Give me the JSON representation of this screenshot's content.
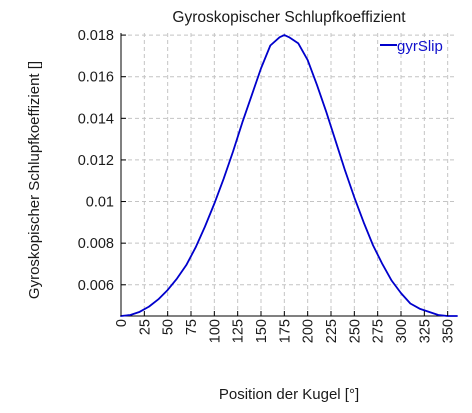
{
  "chart_data": {
    "type": "line",
    "title": "Gyroskopischer Schlupfkoeffizient",
    "xlabel": "Position der Kugel [°]",
    "ylabel": "Gyroskopischer Schlupfkoeffizient []",
    "xlim": [
      0,
      360
    ],
    "ylim": [
      0.0045,
      0.0181
    ],
    "xticks": [
      0,
      25,
      50,
      75,
      100,
      125,
      150,
      175,
      200,
      225,
      250,
      275,
      300,
      325,
      350
    ],
    "yticks": [
      0.006,
      0.008,
      0.01,
      0.012,
      0.014,
      0.016,
      0.018
    ],
    "ytick_labels": [
      "0.006",
      "0.008",
      "0.01",
      "0.012",
      "0.014",
      "0.016",
      "0.018"
    ],
    "grid": true,
    "legend_position": "top-right",
    "series": [
      {
        "name": "gyrSlip",
        "color": "#0000cc",
        "x": [
          0,
          10,
          20,
          30,
          40,
          50,
          60,
          70,
          80,
          90,
          100,
          110,
          120,
          130,
          140,
          150,
          160,
          170,
          175,
          180,
          190,
          200,
          210,
          220,
          230,
          240,
          250,
          260,
          270,
          280,
          290,
          300,
          310,
          320,
          330,
          340,
          350,
          360
        ],
        "y": [
          0.0045,
          0.00455,
          0.0047,
          0.00495,
          0.0053,
          0.00575,
          0.0063,
          0.00695,
          0.0078,
          0.0088,
          0.0099,
          0.0111,
          0.0124,
          0.0138,
          0.0151,
          0.0164,
          0.0175,
          0.0179,
          0.018,
          0.0179,
          0.0176,
          0.0168,
          0.0156,
          0.0143,
          0.0129,
          0.0115,
          0.0102,
          0.009,
          0.0079,
          0.007,
          0.0062,
          0.0056,
          0.0051,
          0.00485,
          0.0047,
          0.00455,
          0.0045,
          0.0045
        ]
      }
    ]
  }
}
